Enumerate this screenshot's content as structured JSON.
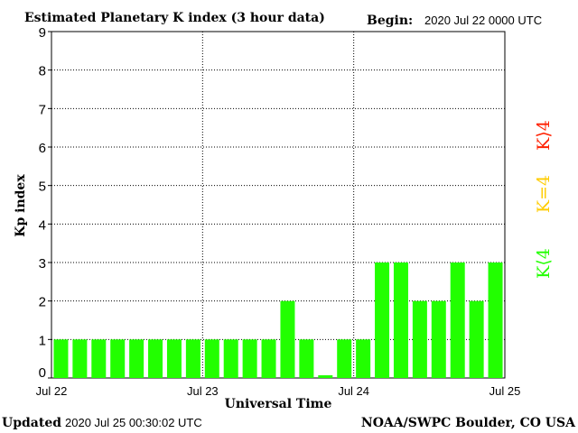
{
  "header": {
    "title": "Estimated Planetary K index (3 hour data)",
    "begin_label": "Begin:",
    "begin_value": "2020 Jul 22 0000 UTC"
  },
  "footer": {
    "updated_label": "Updated",
    "updated_value": "2020 Jul 25 00:30:02 UTC",
    "source": "NOAA/SWPC Boulder, CO USA"
  },
  "legend": {
    "k_gt_4": {
      "label": "K⟩4",
      "color": "#ff2000"
    },
    "k_eq_4": {
      "label": "K=4",
      "color": "#ffcc00"
    },
    "k_lt_4": {
      "label": "K⟨4",
      "color": "#22ff00"
    }
  },
  "chart_data": {
    "type": "bar",
    "xlabel": "Universal Time",
    "ylabel": "Kp index",
    "ylim": [
      0,
      9
    ],
    "yticks": [
      "0",
      "1",
      "2",
      "3",
      "4",
      "5",
      "6",
      "7",
      "8",
      "9"
    ],
    "x_tick_labels": [
      "Jul 22",
      "Jul 23",
      "Jul 24",
      "Jul 25"
    ],
    "grid": true,
    "bar_color": "#22ff00",
    "values": [
      1,
      1,
      1,
      1,
      1,
      1,
      1,
      1,
      1,
      1,
      1,
      1,
      2,
      1,
      0.07,
      1,
      1,
      3,
      3,
      2,
      2,
      3,
      2,
      3
    ]
  }
}
